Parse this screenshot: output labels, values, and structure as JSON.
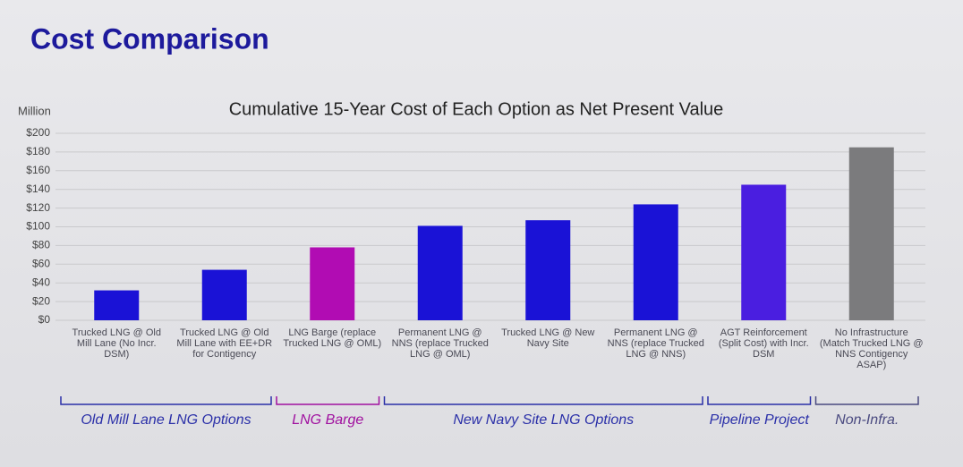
{
  "header": {
    "title": "Cost Comparison"
  },
  "chart_data": {
    "type": "bar",
    "title": "Cumulative 15-Year Cost of Each Option as Net Present Value",
    "y_label": "Million",
    "categories": [
      "Trucked LNG @ Old Mill Lane (No Incr. DSM)",
      "Trucked LNG @ Old Mill Lane with EE+DR for Contigency",
      "LNG Barge (replace Trucked LNG @ OML)",
      "Permanent LNG @ NNS (replace Trucked LNG @ OML)",
      "Trucked LNG @ New Navy Site",
      "Permanent LNG @ NNS (replace Trucked LNG @ NNS)",
      "AGT Reinforcement (Split Cost) with Incr. DSM",
      "No Infrastructure (Match Trucked LNG @ NNS Contigency ASAP)"
    ],
    "values": [
      32,
      54,
      78,
      101,
      107,
      124,
      145,
      185
    ],
    "colors": [
      "#1a12d6",
      "#1a12d6",
      "#b10cb3",
      "#1a12d6",
      "#1a12d6",
      "#1a12d6",
      "#4a1ee0",
      "#7b7b7d"
    ],
    "ylim": [
      0,
      200
    ],
    "yticks": [
      {
        "value": 0,
        "label": "$0"
      },
      {
        "value": 20,
        "label": "$20"
      },
      {
        "value": 40,
        "label": "$40"
      },
      {
        "value": 60,
        "label": "$60"
      },
      {
        "value": 80,
        "label": "$80"
      },
      {
        "value": 100,
        "label": "$100"
      },
      {
        "value": 120,
        "label": "$120"
      },
      {
        "value": 140,
        "label": "$140"
      },
      {
        "value": 160,
        "label": "$160"
      },
      {
        "value": 180,
        "label": "$180"
      },
      {
        "value": 200,
        "label": "$200"
      }
    ],
    "grid": true,
    "groups": [
      {
        "label": "Old Mill Lane LNG Options",
        "size": 2,
        "color": "#2a2fa8"
      },
      {
        "label": "LNG Barge",
        "size": 1,
        "color": "#a0109f"
      },
      {
        "label": "New Navy Site LNG Options",
        "size": 3,
        "color": "#2a2fa8"
      },
      {
        "label": "Pipeline Project",
        "size": 1,
        "color": "#2a2fa8"
      },
      {
        "label": "Non-Infra.",
        "size": 1,
        "color": "#4a4a80"
      }
    ]
  }
}
